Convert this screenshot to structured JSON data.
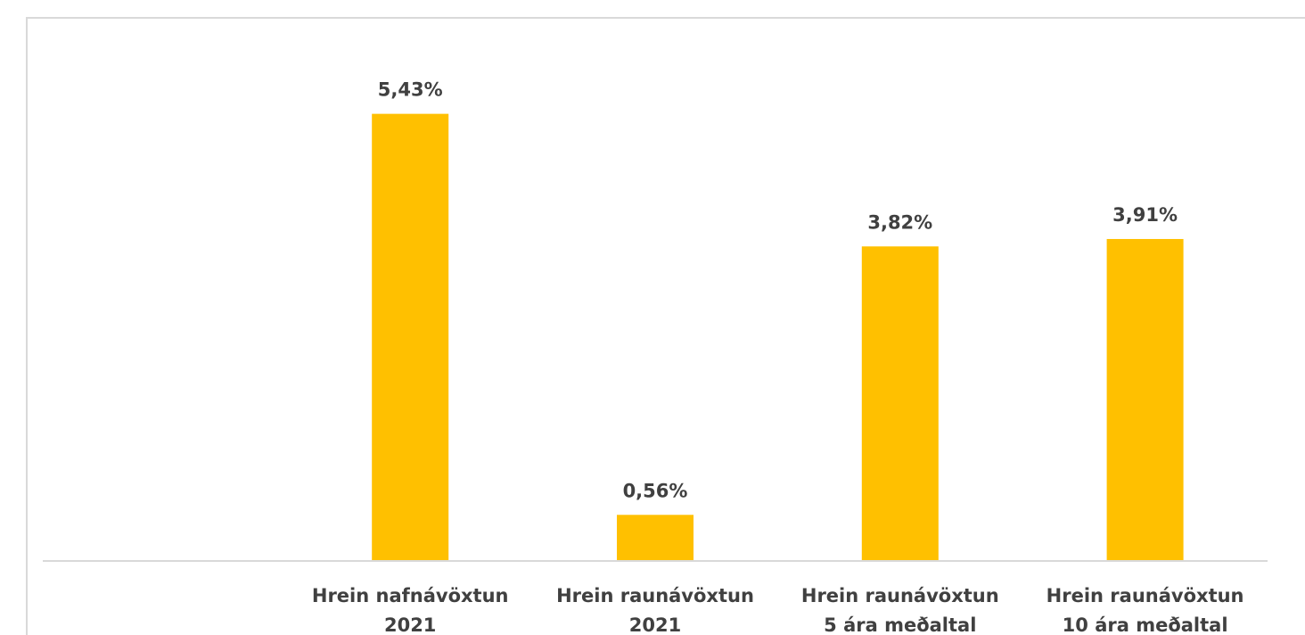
{
  "chart_data": {
    "type": "bar",
    "categories": [
      null,
      [
        "Hrein nafnávöxtun",
        "2021"
      ],
      [
        "Hrein raunávöxtun",
        "2021"
      ],
      [
        "Hrein raunávöxtun",
        "5 ára meðaltal"
      ],
      [
        "Hrein raunávöxtun",
        "10 ára meðaltal"
      ]
    ],
    "values": [
      null,
      5.43,
      0.56,
      3.82,
      3.91
    ],
    "value_labels": [
      null,
      "5,43%",
      "0,56%",
      "3,82%",
      "3,91%"
    ],
    "color": "#ffc000",
    "ylim": [
      0,
      6
    ]
  }
}
